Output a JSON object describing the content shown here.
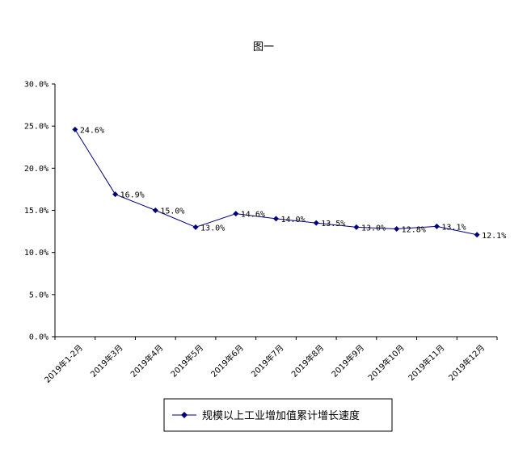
{
  "chart_data": {
    "type": "line",
    "title": "图一",
    "categories": [
      "2019年1-2月",
      "2019年3月",
      "2019年4月",
      "2019年5月",
      "2019年6月",
      "2019年7月",
      "2019年8月",
      "2019年9月",
      "2019年10月",
      "2019年11月",
      "2019年12月"
    ],
    "series": [
      {
        "name": "规模以上工业增加值累计增长速度",
        "values": [
          24.6,
          16.9,
          15.0,
          13.0,
          14.6,
          14.0,
          13.5,
          13.0,
          12.8,
          13.1,
          12.1
        ],
        "labels": [
          "24.6%",
          "16.9%",
          "15.0%",
          "13.0%",
          "14.6%",
          "14.0%",
          "13.5%",
          "13.0%",
          "12.8%",
          "13.1%",
          "12.1%"
        ],
        "color": "#00007f"
      }
    ],
    "ylim": [
      0,
      30
    ],
    "yticks": [
      "0.0%",
      "5.0%",
      "10.0%",
      "15.0%",
      "20.0%",
      "25.0%",
      "30.0%"
    ],
    "xlabel": "",
    "ylabel": "",
    "grid": false,
    "legend_position": "bottom"
  }
}
